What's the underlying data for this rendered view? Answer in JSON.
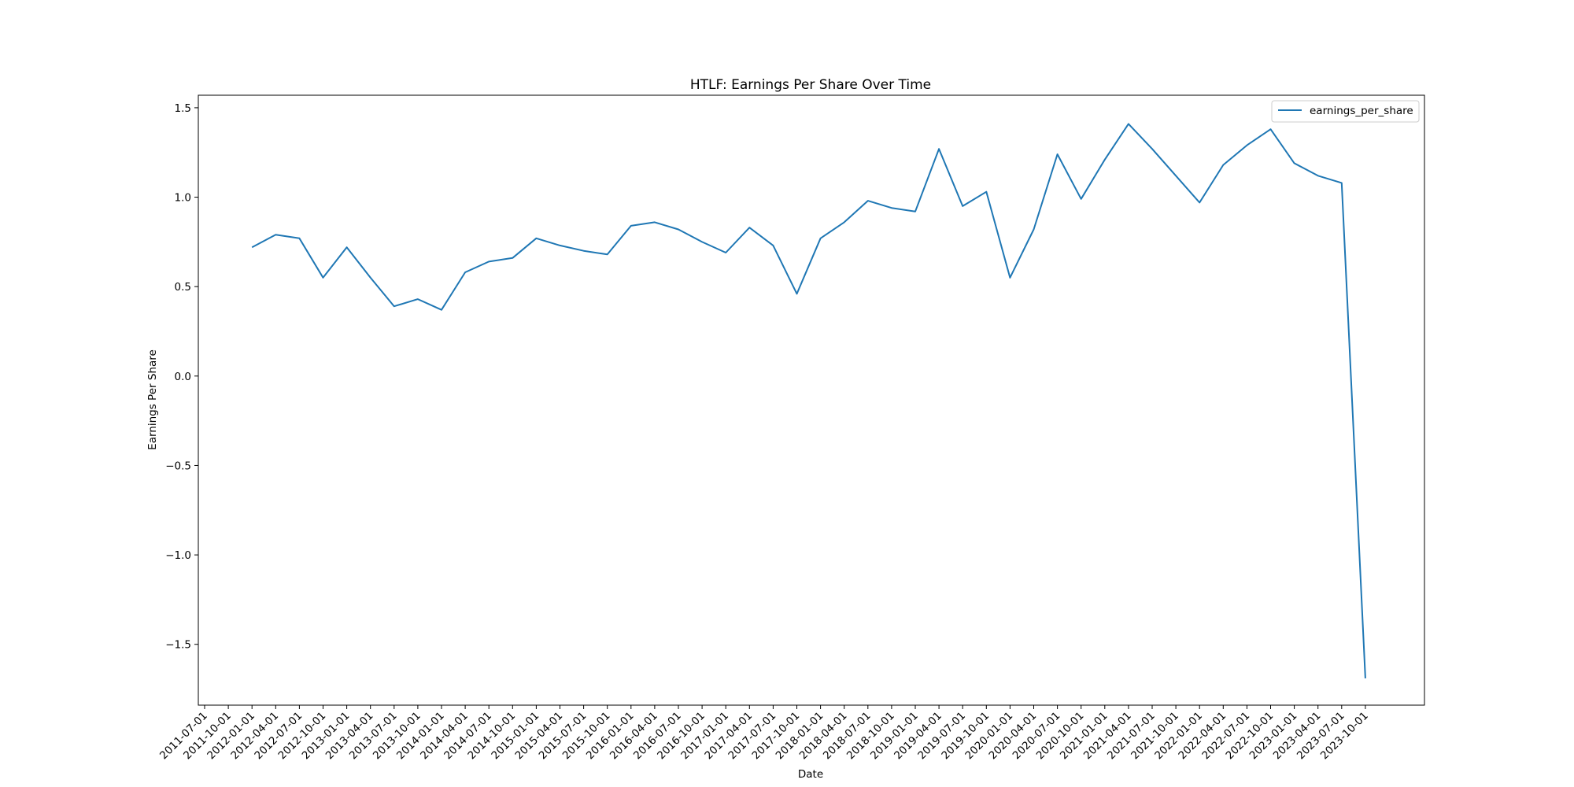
{
  "colors": {
    "series_line": "#1f77b4",
    "axes": "#000000",
    "background": "#ffffff",
    "legend_border": "#cccccc"
  },
  "chart_data": {
    "type": "line",
    "title": "HTLF: Earnings Per Share Over Time",
    "xlabel": "Date",
    "ylabel": "Earnings Per Share",
    "grid": false,
    "legend_position": "top-right",
    "x_ticks": [
      "2011-07-01",
      "2011-10-01",
      "2012-01-01",
      "2012-04-01",
      "2012-07-01",
      "2012-10-01",
      "2013-01-01",
      "2013-04-01",
      "2013-07-01",
      "2013-10-01",
      "2014-01-01",
      "2014-04-01",
      "2014-07-01",
      "2014-10-01",
      "2015-01-01",
      "2015-04-01",
      "2015-07-01",
      "2015-10-01",
      "2016-01-01",
      "2016-04-01",
      "2016-07-01",
      "2016-10-01",
      "2017-01-01",
      "2017-04-01",
      "2017-07-01",
      "2017-10-01",
      "2018-01-01",
      "2018-04-01",
      "2018-07-01",
      "2018-10-01",
      "2019-01-01",
      "2019-04-01",
      "2019-07-01",
      "2019-10-01",
      "2020-01-01",
      "2020-04-01",
      "2020-07-01",
      "2020-10-01",
      "2021-01-01",
      "2021-04-01",
      "2021-07-01",
      "2021-10-01",
      "2022-01-01",
      "2022-04-01",
      "2022-07-01",
      "2022-10-01",
      "2023-01-01",
      "2023-04-01",
      "2023-07-01",
      "2023-10-01"
    ],
    "y_ticks": [
      "1.5",
      "1.0",
      "0.5",
      "0.0",
      "−0.5",
      "−1.0",
      "−1.5"
    ],
    "y_tick_values": [
      1.5,
      1.0,
      0.5,
      0.0,
      -0.5,
      -1.0,
      -1.5
    ],
    "ylim": [
      -1.84,
      1.57
    ],
    "series": [
      {
        "name": "earnings_per_share",
        "x": [
          "2012-01-01",
          "2012-04-01",
          "2012-07-01",
          "2012-10-01",
          "2013-01-01",
          "2013-04-01",
          "2013-07-01",
          "2013-10-01",
          "2014-01-01",
          "2014-04-01",
          "2014-07-01",
          "2014-10-01",
          "2015-01-01",
          "2015-04-01",
          "2015-07-01",
          "2015-10-01",
          "2016-01-01",
          "2016-04-01",
          "2016-07-01",
          "2016-10-01",
          "2017-01-01",
          "2017-04-01",
          "2017-07-01",
          "2017-10-01",
          "2018-01-01",
          "2018-04-01",
          "2018-07-01",
          "2018-10-01",
          "2019-01-01",
          "2019-04-01",
          "2019-07-01",
          "2019-10-01",
          "2020-01-01",
          "2020-04-01",
          "2020-07-01",
          "2020-10-01",
          "2021-01-01",
          "2021-04-01",
          "2021-07-01",
          "2021-10-01",
          "2022-01-01",
          "2022-04-01",
          "2022-07-01",
          "2022-10-01",
          "2023-01-01",
          "2023-04-01",
          "2023-07-01",
          "2023-10-01"
        ],
        "values": [
          0.72,
          0.79,
          0.77,
          0.55,
          0.72,
          0.55,
          0.39,
          0.43,
          0.37,
          0.58,
          0.64,
          0.66,
          0.77,
          0.73,
          0.7,
          0.68,
          0.84,
          0.86,
          0.82,
          0.75,
          0.69,
          0.83,
          0.73,
          0.46,
          0.77,
          0.86,
          0.98,
          0.94,
          0.92,
          1.27,
          0.95,
          1.03,
          0.55,
          0.82,
          1.24,
          0.99,
          1.21,
          1.41,
          1.27,
          1.12,
          0.97,
          1.18,
          1.29,
          1.38,
          1.19,
          1.12,
          1.08,
          -1.69
        ]
      }
    ]
  }
}
